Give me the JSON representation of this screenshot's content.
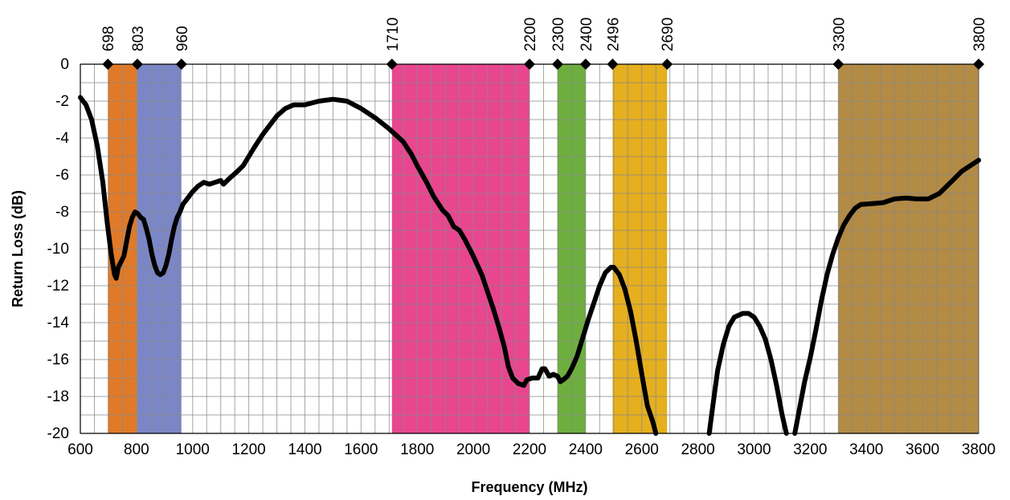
{
  "chart_data": {
    "type": "line",
    "xlabel": "Frequency (MHz)",
    "ylabel": "Return Loss (dB)",
    "xlim": [
      600,
      3800
    ],
    "ylim": [
      -20,
      0
    ],
    "x_ticks": [
      600,
      800,
      1000,
      1200,
      1400,
      1600,
      1800,
      2000,
      2200,
      2400,
      2600,
      2800,
      3000,
      3200,
      3400,
      3600,
      3800
    ],
    "y_ticks": [
      0,
      -2,
      -4,
      -6,
      -8,
      -10,
      -12,
      -14,
      -16,
      -18,
      -20
    ],
    "minor_x_step": 50,
    "minor_y_step": 1,
    "grid": true,
    "legend": "none",
    "line_color": "#000000",
    "band_markers": [
      698,
      803,
      960,
      1710,
      2200,
      2300,
      2400,
      2496,
      2690,
      3300,
      3800
    ],
    "bands": [
      {
        "start": 698,
        "end": 803,
        "color": "#E07A28"
      },
      {
        "start": 803,
        "end": 960,
        "color": "#7B86C6"
      },
      {
        "start": 1710,
        "end": 2200,
        "color": "#E8468F"
      },
      {
        "start": 2300,
        "end": 2400,
        "color": "#6EAE3E"
      },
      {
        "start": 2496,
        "end": 2690,
        "color": "#E6AF1E"
      },
      {
        "start": 3300,
        "end": 3800,
        "color": "#B38B45"
      }
    ],
    "series": [
      {
        "segments": [
          [
            [
              600,
              -1.8
            ],
            [
              620,
              -2.2
            ],
            [
              640,
              -3.0
            ],
            [
              660,
              -4.4
            ],
            [
              680,
              -6.4
            ],
            [
              695,
              -8.5
            ],
            [
              710,
              -10.3
            ],
            [
              722,
              -11.4
            ],
            [
              728,
              -11.6
            ],
            [
              735,
              -11.0
            ],
            [
              745,
              -10.7
            ],
            [
              755,
              -10.4
            ],
            [
              765,
              -9.6
            ],
            [
              775,
              -8.8
            ],
            [
              785,
              -8.3
            ],
            [
              795,
              -8.0
            ],
            [
              805,
              -8.1
            ],
            [
              815,
              -8.3
            ],
            [
              825,
              -8.4
            ],
            [
              835,
              -8.9
            ],
            [
              845,
              -9.5
            ],
            [
              855,
              -10.3
            ],
            [
              865,
              -10.9
            ],
            [
              875,
              -11.3
            ],
            [
              885,
              -11.4
            ],
            [
              895,
              -11.3
            ],
            [
              905,
              -10.9
            ],
            [
              915,
              -10.3
            ],
            [
              925,
              -9.5
            ],
            [
              935,
              -8.8
            ],
            [
              945,
              -8.3
            ],
            [
              955,
              -8.0
            ],
            [
              965,
              -7.6
            ],
            [
              980,
              -7.3
            ],
            [
              1000,
              -6.9
            ],
            [
              1020,
              -6.6
            ],
            [
              1040,
              -6.4
            ],
            [
              1060,
              -6.5
            ],
            [
              1080,
              -6.4
            ],
            [
              1100,
              -6.3
            ],
            [
              1110,
              -6.5
            ],
            [
              1130,
              -6.2
            ],
            [
              1160,
              -5.8
            ],
            [
              1180,
              -5.5
            ],
            [
              1200,
              -5.0
            ],
            [
              1220,
              -4.5
            ],
            [
              1250,
              -3.8
            ],
            [
              1280,
              -3.2
            ],
            [
              1300,
              -2.8
            ],
            [
              1330,
              -2.4
            ],
            [
              1360,
              -2.2
            ],
            [
              1400,
              -2.2
            ],
            [
              1450,
              -2.0
            ],
            [
              1500,
              -1.9
            ],
            [
              1550,
              -2.0
            ],
            [
              1600,
              -2.4
            ],
            [
              1650,
              -2.9
            ],
            [
              1700,
              -3.5
            ],
            [
              1750,
              -4.2
            ],
            [
              1780,
              -4.9
            ],
            [
              1800,
              -5.5
            ],
            [
              1830,
              -6.3
            ],
            [
              1860,
              -7.2
            ],
            [
              1890,
              -7.9
            ],
            [
              1910,
              -8.2
            ],
            [
              1930,
              -8.8
            ],
            [
              1950,
              -9.0
            ],
            [
              1970,
              -9.5
            ],
            [
              2000,
              -10.4
            ],
            [
              2030,
              -11.4
            ],
            [
              2050,
              -12.3
            ],
            [
              2070,
              -13.2
            ],
            [
              2090,
              -14.2
            ],
            [
              2110,
              -15.3
            ],
            [
              2125,
              -16.4
            ],
            [
              2140,
              -17.0
            ],
            [
              2160,
              -17.3
            ],
            [
              2180,
              -17.4
            ],
            [
              2190,
              -17.1
            ],
            [
              2210,
              -17.0
            ],
            [
              2230,
              -17.0
            ],
            [
              2245,
              -16.5
            ],
            [
              2255,
              -16.5
            ],
            [
              2270,
              -16.9
            ],
            [
              2285,
              -16.8
            ],
            [
              2300,
              -16.9
            ],
            [
              2310,
              -17.2
            ],
            [
              2320,
              -17.1
            ],
            [
              2335,
              -16.9
            ],
            [
              2350,
              -16.5
            ],
            [
              2370,
              -15.8
            ],
            [
              2390,
              -14.8
            ],
            [
              2410,
              -13.8
            ],
            [
              2430,
              -12.9
            ],
            [
              2450,
              -12.0
            ],
            [
              2470,
              -11.3
            ],
            [
              2490,
              -11.0
            ],
            [
              2500,
              -11.0
            ],
            [
              2520,
              -11.4
            ],
            [
              2540,
              -12.2
            ],
            [
              2560,
              -13.4
            ],
            [
              2580,
              -15.0
            ],
            [
              2600,
              -16.8
            ],
            [
              2620,
              -18.5
            ],
            [
              2640,
              -19.4
            ],
            [
              2650,
              -20.0
            ]
          ],
          [
            [
              2840,
              -20.0
            ],
            [
              2855,
              -18.3
            ],
            [
              2870,
              -16.6
            ],
            [
              2890,
              -15.2
            ],
            [
              2910,
              -14.2
            ],
            [
              2930,
              -13.7
            ],
            [
              2960,
              -13.5
            ],
            [
              2980,
              -13.5
            ],
            [
              3000,
              -13.7
            ],
            [
              3020,
              -14.2
            ],
            [
              3040,
              -14.9
            ],
            [
              3060,
              -16.0
            ],
            [
              3080,
              -17.4
            ],
            [
              3100,
              -19.0
            ],
            [
              3115,
              -20.0
            ]
          ],
          [
            [
              3145,
              -20.0
            ],
            [
              3160,
              -18.8
            ],
            [
              3180,
              -17.2
            ],
            [
              3200,
              -15.9
            ],
            [
              3220,
              -14.4
            ],
            [
              3240,
              -12.8
            ],
            [
              3260,
              -11.4
            ],
            [
              3280,
              -10.3
            ],
            [
              3300,
              -9.4
            ],
            [
              3320,
              -8.7
            ],
            [
              3340,
              -8.2
            ],
            [
              3360,
              -7.8
            ],
            [
              3380,
              -7.6
            ],
            [
              3420,
              -7.55
            ],
            [
              3460,
              -7.5
            ],
            [
              3500,
              -7.3
            ],
            [
              3540,
              -7.25
            ],
            [
              3580,
              -7.3
            ],
            [
              3620,
              -7.3
            ],
            [
              3660,
              -7.0
            ],
            [
              3700,
              -6.4
            ],
            [
              3740,
              -5.8
            ],
            [
              3770,
              -5.5
            ],
            [
              3800,
              -5.2
            ]
          ]
        ]
      }
    ]
  }
}
